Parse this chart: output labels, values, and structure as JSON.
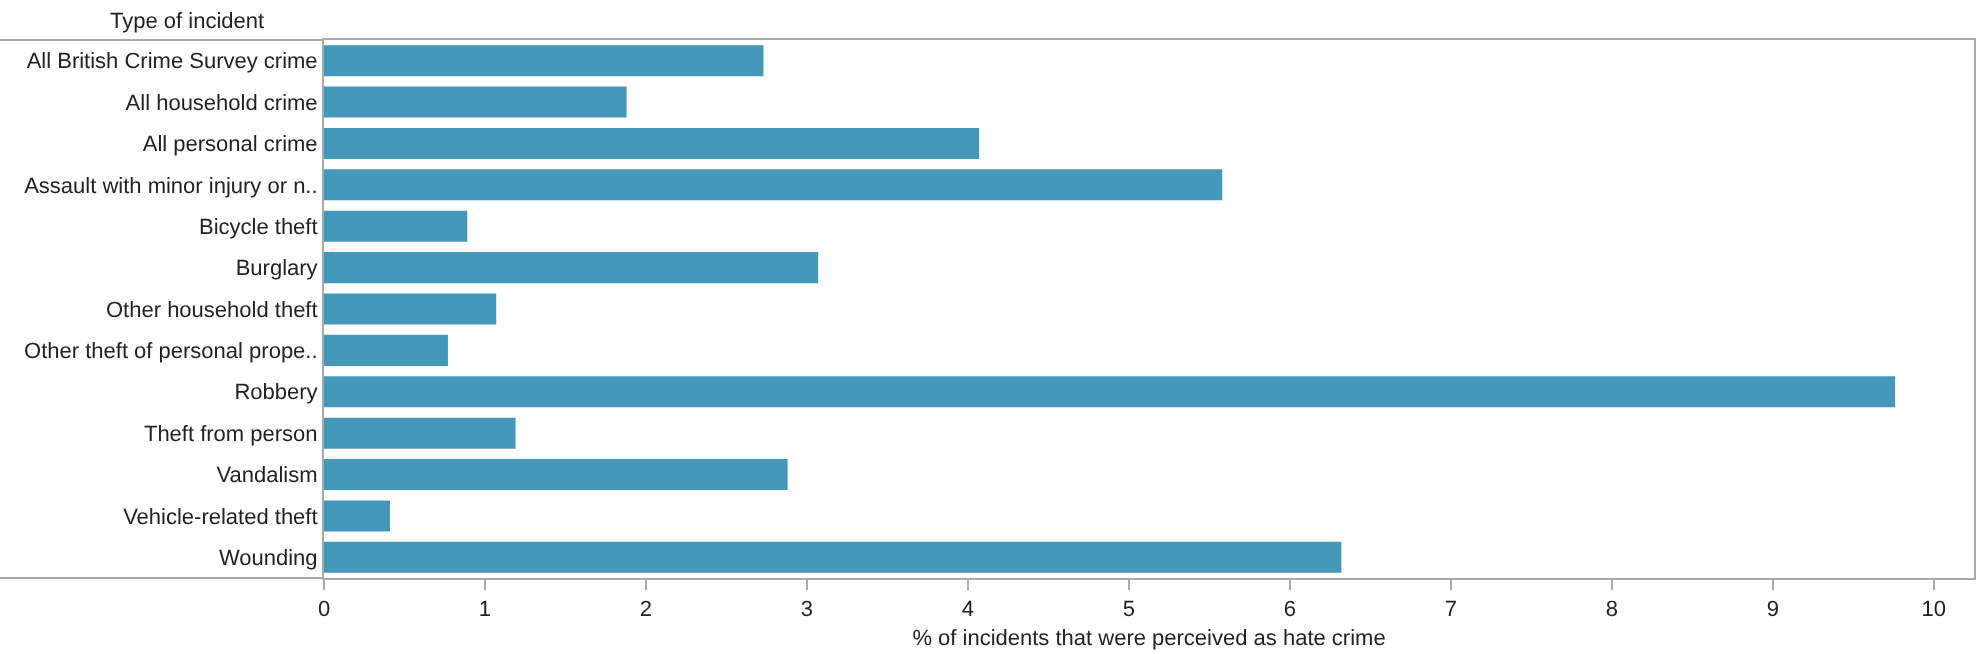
{
  "chart_data": {
    "type": "bar",
    "orientation": "horizontal",
    "ylabel": "Type of incident",
    "xlabel": "% of incidents that were perceived as hate crime",
    "categories": [
      "All British Crime Survey crime",
      "All household crime",
      "All personal crime",
      "Assault with minor injury or n..",
      "Bicycle theft",
      "Burglary",
      "Other household theft",
      "Other theft of personal prope..",
      "Robbery",
      "Theft from person",
      "Vandalism",
      "Vehicle-related theft",
      "Wounding"
    ],
    "values": [
      2.73,
      1.88,
      4.07,
      5.58,
      0.89,
      3.07,
      1.07,
      0.77,
      9.76,
      1.19,
      2.88,
      0.41,
      6.32
    ],
    "color": "#4499bb",
    "xlim": [
      0,
      10.25
    ],
    "xticks": [
      0,
      1,
      2,
      3,
      4,
      5,
      6,
      7,
      8,
      9,
      10
    ],
    "grid": false,
    "legend": false
  }
}
